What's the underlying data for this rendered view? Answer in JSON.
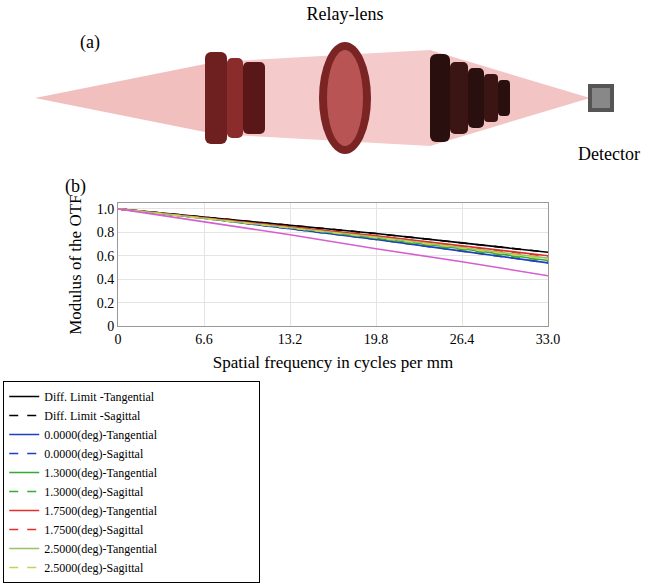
{
  "diagram": {
    "label": "(a)",
    "lens_label": "Relay-lens",
    "detector_label": "Detector"
  },
  "chart_data": {
    "type": "line",
    "label": "(b)",
    "xlabel": "Spatial frequency in cycles per mm",
    "ylabel": "Modulus of the OTF",
    "x": [
      0,
      6.6,
      13.2,
      19.8,
      26.4,
      33
    ],
    "xlim": [
      0,
      33
    ],
    "xticks": [
      0,
      6.6,
      13.2,
      19.8,
      26.4,
      {
        "value": 33,
        "label": "33.0"
      }
    ],
    "ylim": [
      0,
      1.05
    ],
    "yticks": [
      0,
      0.2,
      0.4,
      0.6,
      0.8,
      {
        "value": 1,
        "label": "1.0"
      }
    ],
    "grid": true,
    "legend": "below",
    "series": [
      {
        "name": "Diff. Limit -Tangential",
        "color": "#000000",
        "line_style": "solid",
        "values": [
          1,
          0.93,
          0.86,
          0.79,
          0.71,
          0.63
        ]
      },
      {
        "name": "Diff. Limit -Sagittal",
        "color": "#000000",
        "line_style": "dash",
        "values": [
          1,
          0.93,
          0.86,
          0.79,
          0.71,
          0.63
        ]
      },
      {
        "name": "0.0000(deg)-Tangential",
        "color": "#1f3fbf",
        "line_style": "solid",
        "values": [
          1,
          0.92,
          0.83,
          0.74,
          0.64,
          0.54
        ]
      },
      {
        "name": "0.0000(deg)-Sagittal",
        "color": "#1f3fbf",
        "line_style": "dash",
        "values": [
          1,
          0.92,
          0.83,
          0.74,
          0.64,
          0.54
        ]
      },
      {
        "name": "1.3000(deg)-Tangential",
        "color": "#33aa33",
        "line_style": "solid",
        "values": [
          1,
          0.92,
          0.84,
          0.75,
          0.66,
          0.56
        ]
      },
      {
        "name": "1.3000(deg)-Sagittal",
        "color": "#33aa33",
        "line_style": "dash",
        "values": [
          1,
          0.92,
          0.84,
          0.75,
          0.655,
          0.555
        ]
      },
      {
        "name": "1.7500(deg)-Tangential",
        "color": "#e0302a",
        "line_style": "solid",
        "values": [
          1,
          0.925,
          0.85,
          0.77,
          0.685,
          0.6
        ]
      },
      {
        "name": "1.7500(deg)-Sagittal",
        "color": "#e0302a",
        "line_style": "dash",
        "values": [
          1,
          0.925,
          0.85,
          0.77,
          0.68,
          0.595
        ]
      },
      {
        "name": "2.5000(deg)-Tangential",
        "color": "#9cc065",
        "line_style": "solid",
        "values": [
          1,
          0.92,
          0.845,
          0.76,
          0.67,
          0.58
        ]
      },
      {
        "name": "2.5000(deg)-Sagittal",
        "color": "#c8cf5a",
        "line_style": "dash",
        "values": [
          1,
          0.92,
          0.84,
          0.755,
          0.665,
          0.57
        ]
      },
      {
        "color": "#d65fd0",
        "line_style": "solid",
        "values": [
          1,
          0.89,
          0.78,
          0.66,
          0.55,
          0.43
        ]
      }
    ]
  }
}
